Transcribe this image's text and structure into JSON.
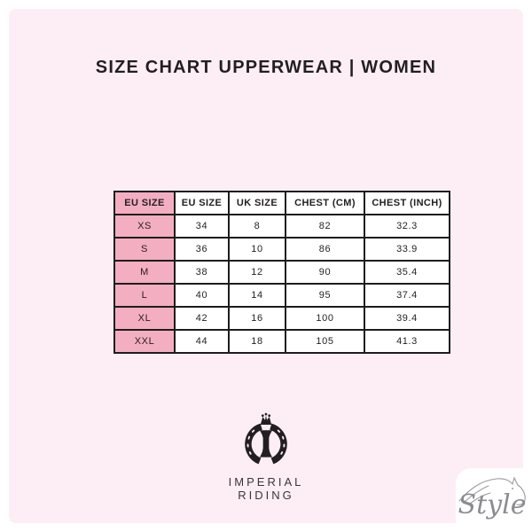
{
  "title": "SIZE CHART UPPERWEAR | WOMEN",
  "chart_data": {
    "type": "table",
    "title": "SIZE CHART UPPERWEAR | WOMEN",
    "headers": [
      "EU SIZE",
      "EU SIZE",
      "UK SIZE",
      "CHEST (CM)",
      "CHEST (INCH)"
    ],
    "rows": [
      [
        "XS",
        "34",
        "8",
        "82",
        "32.3"
      ],
      [
        "S",
        "36",
        "10",
        "86",
        "33.9"
      ],
      [
        "M",
        "38",
        "12",
        "90",
        "35.4"
      ],
      [
        "L",
        "40",
        "14",
        "95",
        "37.4"
      ],
      [
        "XL",
        "42",
        "16",
        "100",
        "39.4"
      ],
      [
        "XXL",
        "44",
        "18",
        "105",
        "41.3"
      ]
    ]
  },
  "brand": {
    "name_line1": "IMPERIAL",
    "name_line2": "RIDING",
    "logo_icon": "horseshoe-crown-logo"
  },
  "watermark": {
    "text": "Style",
    "icon": "horse-head-sketch"
  },
  "colors": {
    "page_border": "#ffffff",
    "panel_background": "#fdeef5",
    "table_header_pink": "#f3aec2",
    "table_border": "#1d1d1b",
    "text_dark": "#231f20",
    "watermark_gray": "#8b8b92"
  }
}
